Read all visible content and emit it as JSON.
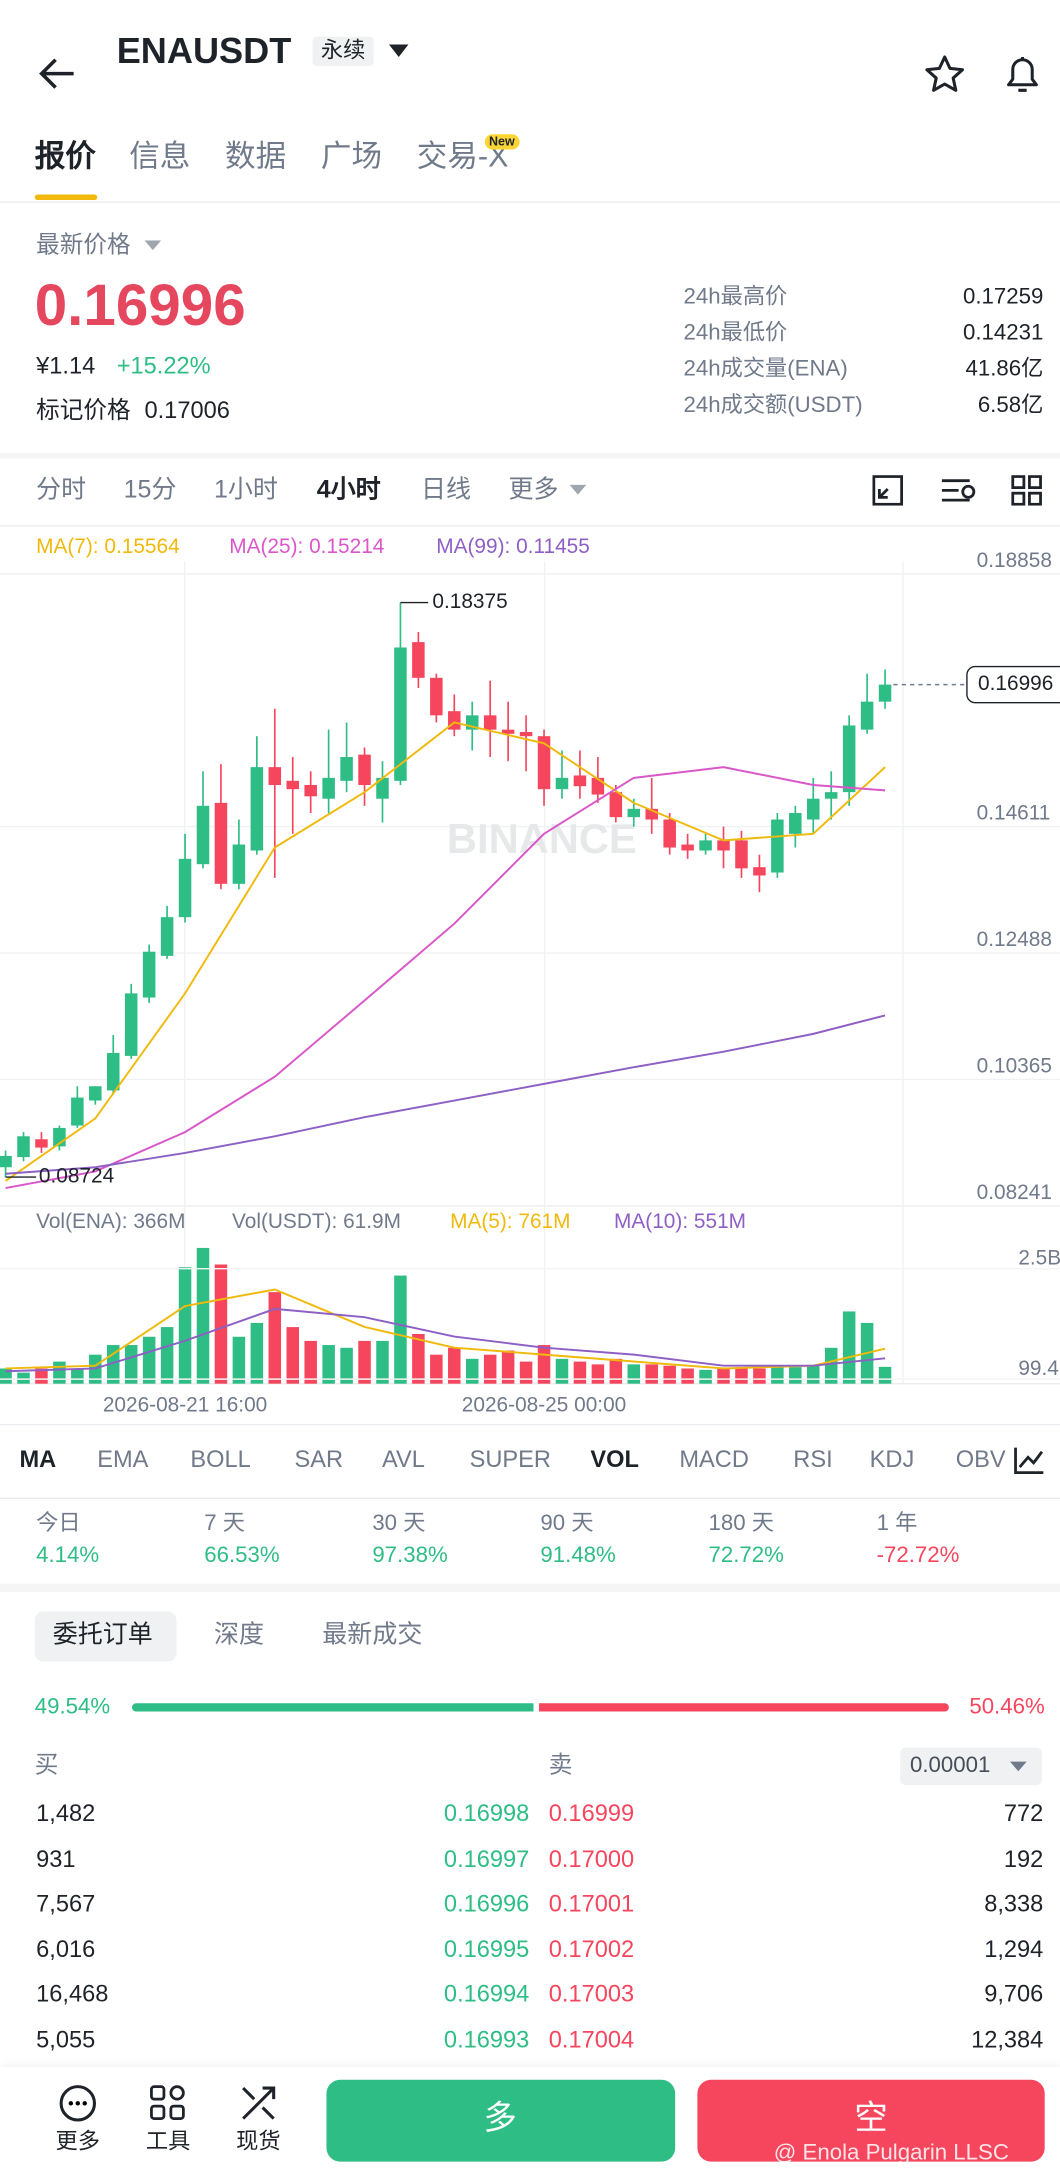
{
  "header": {
    "title": "ENAUSDT",
    "badge": "永续"
  },
  "tabs": {
    "items": [
      "报价",
      "信息",
      "数据",
      "广场",
      "交易-X"
    ],
    "new_badge": "New"
  },
  "price": {
    "label": "最新价格",
    "last": "0.16996",
    "cny": "¥1.14",
    "change": "+15.22%",
    "mark_label": "标记价格",
    "mark": "0.17006"
  },
  "stats": [
    [
      "24h最高价",
      "0.17259"
    ],
    [
      "24h最低价",
      "0.14231"
    ],
    [
      "24h成交量(ENA)",
      "41.86亿"
    ],
    [
      "24h成交额(USDT)",
      "6.58亿"
    ]
  ],
  "intervals": [
    "分时",
    "15分",
    "1小时",
    "4小时",
    "日线",
    "更多"
  ],
  "chart_data": {
    "type": "candlestick",
    "legend": [
      "MA(7): 0.15564",
      "MA(25): 0.15214",
      "MA(99): 0.11455"
    ],
    "watermark": "BINANCE",
    "categories": [
      null,
      null,
      null,
      null,
      null,
      null,
      null,
      null,
      null,
      null,
      "2026-08-21 16:00",
      null,
      null,
      null,
      null,
      null,
      null,
      null,
      null,
      null,
      null,
      null,
      null,
      null,
      null,
      null,
      null,
      null,
      null,
      null,
      "2026-08-25 00:00",
      null,
      null,
      null,
      null,
      null,
      null,
      null,
      null,
      null,
      null,
      null,
      null,
      null,
      null,
      null,
      null,
      null,
      null,
      null
    ],
    "open": [
      0.0889,
      0.0906,
      0.0936,
      0.0924,
      0.0959,
      0.1001,
      0.1018,
      0.1076,
      0.1174,
      0.1244,
      0.1309,
      0.1398,
      0.1501,
      0.1365,
      0.1421,
      0.1561,
      0.1538,
      0.1531,
      0.1508,
      0.1538,
      0.1582,
      0.1508,
      0.1538,
      0.1771,
      0.1711,
      0.1655,
      0.1624,
      0.1648,
      0.1624,
      0.162,
      0.1613,
      0.1524,
      0.1547,
      0.1543,
      0.1519,
      0.1477,
      0.1491,
      0.1473,
      0.1431,
      0.1421,
      0.1438,
      0.1438,
      0.1393,
      0.1384,
      0.1449,
      0.1473,
      0.1508,
      0.1519,
      0.1624,
      0.1671
    ],
    "high": [
      0.0917,
      0.0948,
      0.0948,
      0.0959,
      0.1025,
      0.1025,
      0.1111,
      0.1197,
      0.1263,
      0.1328,
      0.1449,
      0.1554,
      0.1566,
      0.1473,
      0.1613,
      0.1659,
      0.1578,
      0.1554,
      0.1624,
      0.1636,
      0.1594,
      0.1571,
      0.18375,
      0.1788,
      0.1718,
      0.1683,
      0.1671,
      0.1706,
      0.1671,
      0.1648,
      0.1624,
      0.1589,
      0.1589,
      0.1578,
      0.1531,
      0.1508,
      0.1543,
      0.1484,
      0.1449,
      0.1449,
      0.1461,
      0.1454,
      0.1414,
      0.1484,
      0.1496,
      0.1543,
      0.1554,
      0.1648,
      0.1718,
      0.1725
    ],
    "low": [
      0.08724,
      0.0899,
      0.0913,
      0.0917,
      0.0955,
      0.0994,
      0.1011,
      0.1071,
      0.1165,
      0.1239,
      0.13,
      0.1391,
      0.1356,
      0.1356,
      0.1414,
      0.1375,
      0.1449,
      0.1484,
      0.1484,
      0.1519,
      0.1496,
      0.1468,
      0.1531,
      0.1694,
      0.1636,
      0.1613,
      0.1589,
      0.1578,
      0.1571,
      0.1554,
      0.1496,
      0.1508,
      0.1508,
      0.1501,
      0.1468,
      0.1461,
      0.1449,
      0.1414,
      0.1407,
      0.1414,
      0.1391,
      0.1375,
      0.1351,
      0.1375,
      0.1426,
      0.1449,
      0.1473,
      0.1496,
      0.1617,
      0.1659
    ],
    "close": [
      0.0908,
      0.0941,
      0.0922,
      0.0955,
      0.1006,
      0.1025,
      0.1081,
      0.1181,
      0.1251,
      0.1309,
      0.1407,
      0.1496,
      0.1365,
      0.1431,
      0.1561,
      0.1531,
      0.1524,
      0.1512,
      0.1543,
      0.1578,
      0.1531,
      0.1543,
      0.1762,
      0.1711,
      0.1648,
      0.1624,
      0.1648,
      0.1624,
      0.1617,
      0.1613,
      0.1524,
      0.1543,
      0.1529,
      0.1515,
      0.1477,
      0.1491,
      0.1473,
      0.1426,
      0.1421,
      0.1438,
      0.1421,
      0.1391,
      0.1379,
      0.1473,
      0.1484,
      0.1508,
      0.1519,
      0.1631,
      0.1671,
      0.16996
    ],
    "up_color": "#2ebd85",
    "down_color": "#f6465d",
    "ylim": [
      0.08241,
      0.18858
    ],
    "yticks": [
      0.08241,
      0.10365,
      0.12488,
      0.14611,
      0.18858
    ],
    "ma": [
      {
        "color": "#f0b90b",
        "x": [
          0,
          5,
          10,
          15,
          20,
          25,
          30,
          35,
          40,
          45,
          49
        ],
        "values": [
          0.0866,
          0.0971,
          0.1181,
          0.1426,
          0.1519,
          0.1636,
          0.1601,
          0.1501,
          0.1438,
          0.1449,
          0.1561
        ]
      },
      {
        "color": "#d957c9",
        "x": [
          0,
          5,
          10,
          15,
          20,
          25,
          30,
          35,
          40,
          45,
          49
        ],
        "values": [
          0.0854,
          0.0882,
          0.0948,
          0.1041,
          0.1169,
          0.1298,
          0.1449,
          0.1543,
          0.1561,
          0.1531,
          0.1522
        ]
      },
      {
        "color": "#8e5fc4",
        "x": [
          0,
          5,
          10,
          15,
          20,
          25,
          30,
          35,
          40,
          45,
          49
        ],
        "values": [
          0.0878,
          0.0889,
          0.0913,
          0.0941,
          0.0973,
          0.1001,
          0.1029,
          0.1057,
          0.1083,
          0.1113,
          0.1144
        ]
      }
    ],
    "volume": {
      "legend": [
        "Vol(ENA): 366M",
        "Vol(USDT): 61.9M",
        "MA(5): 761M",
        "MA(10): 551M"
      ],
      "legend_colors": [
        "#707a8a",
        "#707a8a",
        "#f0b90b",
        "#8e5fc4"
      ],
      "values": [
        330,
        240,
        330,
        480,
        330,
        630,
        840,
        840,
        1020,
        1230,
        2530,
        2950,
        2590,
        1020,
        1320,
        1990,
        1230,
        930,
        840,
        780,
        930,
        930,
        2350,
        1080,
        630,
        780,
        540,
        630,
        720,
        480,
        840,
        540,
        480,
        420,
        540,
        420,
        420,
        390,
        330,
        300,
        330,
        360,
        330,
        390,
        360,
        390,
        780,
        1570,
        1320,
        366
      ],
      "ylim": [
        0,
        3200
      ],
      "yticks": [
        {
          "value": 99.4,
          "label": "99.4M"
        },
        {
          "value": 2500,
          "label": "2.5B"
        }
      ],
      "ma": [
        {
          "color": "#f0b90b",
          "x": [
            0,
            5,
            10,
            15,
            20,
            25,
            30,
            35,
            40,
            45,
            49
          ],
          "values": [
            331,
            391,
            1686,
            2047,
            1234,
            783,
            632,
            482,
            331,
            391,
            761
          ]
        },
        {
          "color": "#8e5fc4",
          "x": [
            0,
            5,
            10,
            15,
            20,
            25,
            30,
            35,
            40,
            45,
            49
          ],
          "values": [
            271,
            331,
            933,
            1625,
            1445,
            1024,
            783,
            632,
            391,
            391,
            551
          ]
        }
      ]
    }
  },
  "indicators": [
    "MA",
    "EMA",
    "BOLL",
    "SAR",
    "AVL",
    "SUPER",
    "VOL",
    "MACD",
    "RSI",
    "KDJ",
    "OBV"
  ],
  "performance": [
    [
      "今日",
      "4.14%"
    ],
    [
      "7 天",
      "66.53%"
    ],
    [
      "30 天",
      "97.38%"
    ],
    [
      "90 天",
      "91.48%"
    ],
    [
      "180 天",
      "72.72%"
    ],
    [
      "1 年",
      "-72.72%"
    ]
  ],
  "orderbook": {
    "tabs": [
      "委托订单",
      "深度",
      "最新成交"
    ],
    "ratio": {
      "values": [
        49.54,
        50.46
      ],
      "value_labels": [
        "49.54%",
        "50.46%"
      ]
    },
    "buy_label": "买",
    "sell_label": "卖",
    "precision": "0.00001",
    "rows": [
      [
        "1,482",
        "0.16998",
        "0.16999",
        "772"
      ],
      [
        "931",
        "0.16997",
        "0.17000",
        "192"
      ],
      [
        "7,567",
        "0.16996",
        "0.17001",
        "8,338"
      ],
      [
        "6,016",
        "0.16995",
        "0.17002",
        "1,294"
      ],
      [
        "16,468",
        "0.16994",
        "0.17003",
        "9,706"
      ],
      [
        "5,055",
        "0.16993",
        "0.17004",
        "12,384"
      ]
    ]
  },
  "bottom": {
    "tools": [
      "更多",
      "工具",
      "现货"
    ],
    "long": "多",
    "short": "空",
    "watermark": "@ Enola Pulgarin LLSC"
  }
}
